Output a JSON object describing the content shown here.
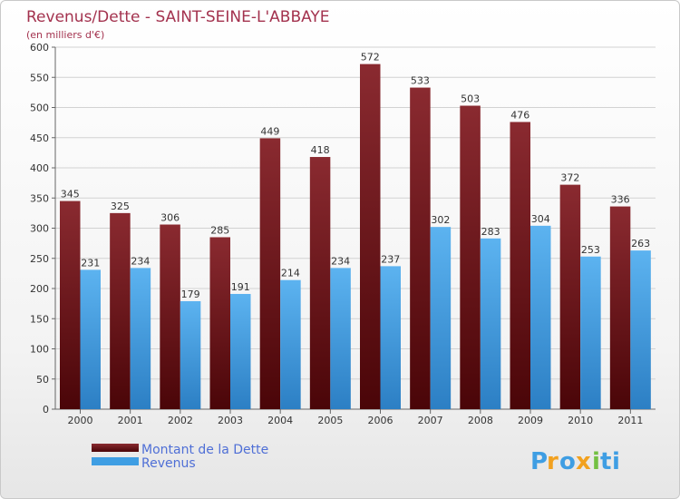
{
  "chart_data": {
    "type": "bar",
    "title": "Revenus/Dette - SAINT-SEINE-L'ABBAYE",
    "subtitle": "(en milliers d'€)",
    "categories": [
      "2000",
      "2001",
      "2002",
      "2003",
      "2004",
      "2005",
      "2006",
      "2007",
      "2008",
      "2009",
      "2010",
      "2011"
    ],
    "series": [
      {
        "name": "Montant de la Dette",
        "color": "#7a1c22",
        "values": [
          345,
          325,
          306,
          285,
          449,
          418,
          572,
          533,
          503,
          476,
          372,
          336
        ]
      },
      {
        "name": "Revenus",
        "color": "#3f9ee3",
        "values": [
          231,
          234,
          179,
          191,
          214,
          234,
          237,
          302,
          283,
          304,
          253,
          263
        ]
      }
    ],
    "ylim": [
      0,
      600
    ],
    "yticks": [
      0,
      50,
      100,
      150,
      200,
      250,
      300,
      350,
      400,
      450,
      500,
      550,
      600
    ],
    "grid": true,
    "legend": "bottom-left"
  },
  "brand": {
    "letters": [
      "P",
      "r",
      "o",
      "x",
      "i",
      "t",
      "i"
    ],
    "colors": [
      "#3f9ee3",
      "#f2a11f",
      "#3f9ee3",
      "#f2a11f",
      "#73c043",
      "#3f9ee3",
      "#3f9ee3"
    ]
  }
}
